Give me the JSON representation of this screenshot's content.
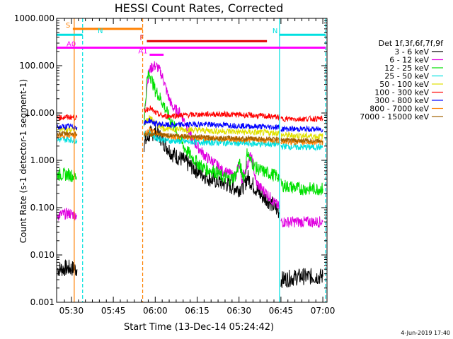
{
  "chart_data": {
    "type": "line",
    "title": "HESSI Count Rates, Corrected",
    "xlabel": "Start Time (13-Dec-14 05:24:42)",
    "ylabel": "Count Rate (s-1 detector-1 segment-1)",
    "yscale": "log",
    "xlim_minutes": [
      324.7,
      421.5
    ],
    "ylim": [
      0.001,
      1000
    ],
    "x_ticks": [
      {
        "label": "05:30",
        "value": 330
      },
      {
        "label": "05:45",
        "value": 345
      },
      {
        "label": "06:00",
        "value": 360
      },
      {
        "label": "06:15",
        "value": 375
      },
      {
        "label": "06:30",
        "value": 390
      },
      {
        "label": "06:45",
        "value": 405
      },
      {
        "label": "07:00",
        "value": 420
      }
    ],
    "y_ticks": [
      {
        "label": "1000.000",
        "value": 1000
      },
      {
        "label": "100.000",
        "value": 100
      },
      {
        "label": "10.000",
        "value": 10
      },
      {
        "label": "1.000",
        "value": 1
      },
      {
        "label": "0.100",
        "value": 0.1
      },
      {
        "label": "0.010",
        "value": 0.01
      },
      {
        "label": "0.001",
        "value": 0.001
      }
    ],
    "legend": {
      "title": "Det 1f,3f,6f,7f,9f",
      "placement": "right",
      "entries": [
        {
          "label": "3 - 6 keV",
          "color": "#000000"
        },
        {
          "label": "6 - 12 keV",
          "color": "#e000e0"
        },
        {
          "label": "12 - 25 keV",
          "color": "#00e000"
        },
        {
          "label": "25 - 50 keV",
          "color": "#00e0e0"
        },
        {
          "label": "50 - 100 keV",
          "color": "#e0e000"
        },
        {
          "label": "100 - 300 keV",
          "color": "#ff0000"
        },
        {
          "label": "300 - 800 keV",
          "color": "#0000ff"
        },
        {
          "label": "800 - 7000 keV",
          "color": "#ff8000"
        },
        {
          "label": "7000 - 15000 keV",
          "color": "#a06000"
        }
      ]
    },
    "series": [
      {
        "name": "3 - 6 keV",
        "color": "#000000",
        "noise": 0.18,
        "segments": [
          [
            [
              325,
              0.005
            ],
            [
              329,
              0.0053
            ],
            [
              332,
              0.005
            ]
          ],
          [
            [
              356,
              2.2
            ],
            [
              358,
              3.5
            ],
            [
              360,
              4.0
            ],
            [
              362,
              3.0
            ],
            [
              364,
              2.0
            ],
            [
              366,
              1.4
            ],
            [
              370,
              1.0
            ],
            [
              375,
              0.6
            ],
            [
              380,
              0.4
            ],
            [
              385,
              0.32
            ],
            [
              388,
              0.27
            ],
            [
              390,
              0.25
            ],
            [
              392,
              0.3
            ],
            [
              393,
              0.45
            ],
            [
              395,
              0.3
            ],
            [
              398,
              0.18
            ],
            [
              400,
              0.15
            ],
            [
              403,
              0.1
            ],
            [
              404.5,
              0.08
            ]
          ],
          [
            [
              405,
              0.003
            ],
            [
              412,
              0.0035
            ],
            [
              420,
              0.0035
            ]
          ]
        ]
      },
      {
        "name": "6 - 12 keV",
        "color": "#e000e0",
        "noise": 0.12,
        "segments": [
          [
            [
              325,
              0.07
            ],
            [
              329,
              0.075
            ],
            [
              332,
              0.07
            ]
          ],
          [
            [
              356,
              6
            ],
            [
              357,
              40
            ],
            [
              358,
              80
            ],
            [
              359,
              95
            ],
            [
              360,
              100
            ],
            [
              361,
              90
            ],
            [
              362,
              70
            ],
            [
              363,
              50
            ],
            [
              364,
              30
            ],
            [
              365,
              20
            ],
            [
              366,
              14
            ],
            [
              367,
              12
            ],
            [
              369,
              10
            ],
            [
              371,
              6
            ],
            [
              373,
              3
            ],
            [
              375,
              2
            ],
            [
              378,
              1.2
            ],
            [
              381,
              0.9
            ],
            [
              384,
              0.6
            ],
            [
              387,
              0.5
            ],
            [
              389,
              0.45
            ],
            [
              390,
              0.9
            ],
            [
              391,
              0.4
            ],
            [
              393,
              0.8
            ],
            [
              394,
              1.2
            ],
            [
              395,
              0.9
            ],
            [
              396,
              0.35
            ],
            [
              398,
              0.25
            ],
            [
              400,
              0.2
            ],
            [
              402,
              0.14
            ],
            [
              404.5,
              0.1
            ]
          ],
          [
            [
              405,
              0.05
            ],
            [
              412,
              0.05
            ],
            [
              420,
              0.05
            ]
          ]
        ]
      },
      {
        "name": "12 - 25 keV",
        "color": "#00e000",
        "noise": 0.14,
        "segments": [
          [
            [
              325,
              0.5
            ],
            [
              329,
              0.5
            ],
            [
              332,
              0.45
            ]
          ],
          [
            [
              356,
              6
            ],
            [
              357,
              50
            ],
            [
              358,
              70
            ],
            [
              359,
              45
            ],
            [
              360,
              30
            ],
            [
              361,
              25
            ],
            [
              363,
              15
            ],
            [
              365,
              8
            ],
            [
              367,
              5
            ],
            [
              370,
              2
            ],
            [
              373,
              1.2
            ],
            [
              375,
              0.9
            ],
            [
              378,
              0.65
            ],
            [
              381,
              0.6
            ],
            [
              384,
              0.45
            ],
            [
              387,
              0.4
            ],
            [
              389,
              0.5
            ],
            [
              390,
              0.9
            ],
            [
              391,
              0.55
            ],
            [
              392,
              0.45
            ],
            [
              393,
              1.6
            ],
            [
              394,
              1.0
            ],
            [
              396,
              0.7
            ],
            [
              398,
              0.6
            ],
            [
              400,
              0.55
            ],
            [
              402,
              0.5
            ],
            [
              404.5,
              0.45
            ]
          ],
          [
            [
              405,
              0.3
            ],
            [
              412,
              0.25
            ],
            [
              420,
              0.25
            ]
          ]
        ]
      },
      {
        "name": "25 - 50 keV",
        "color": "#00e0e0",
        "noise": 0.07,
        "segments": [
          [
            [
              325,
              2.7
            ],
            [
              329,
              2.8
            ],
            [
              332,
              2.6
            ]
          ],
          [
            [
              356,
              3.5
            ],
            [
              358,
              4
            ],
            [
              360,
              3
            ],
            [
              365,
              2.6
            ],
            [
              370,
              2.5
            ],
            [
              380,
              2.4
            ],
            [
              390,
              2.3
            ],
            [
              400,
              2.2
            ],
            [
              404.5,
              2.2
            ]
          ],
          [
            [
              405,
              2.0
            ],
            [
              412,
              1.9
            ],
            [
              420,
              1.9
            ]
          ]
        ]
      },
      {
        "name": "50 - 100 keV",
        "color": "#e0e000",
        "noise": 0.07,
        "segments": [
          [
            [
              325,
              4.5
            ],
            [
              329,
              4.6
            ],
            [
              332,
              4.4
            ]
          ],
          [
            [
              356,
              6
            ],
            [
              358,
              8
            ],
            [
              360,
              6
            ],
            [
              363,
              4.8
            ],
            [
              370,
              4.5
            ],
            [
              380,
              4.2
            ],
            [
              390,
              4.0
            ],
            [
              400,
              3.8
            ],
            [
              404.5,
              3.8
            ]
          ],
          [
            [
              405,
              3.4
            ],
            [
              412,
              3.3
            ],
            [
              420,
              3.2
            ]
          ]
        ]
      },
      {
        "name": "100 - 300 keV",
        "color": "#ff0000",
        "noise": 0.06,
        "segments": [
          [
            [
              325,
              8
            ],
            [
              329,
              8.2
            ],
            [
              332,
              8
            ]
          ],
          [
            [
              356,
              11
            ],
            [
              358,
              13
            ],
            [
              360,
              10
            ],
            [
              363,
              8.5
            ],
            [
              370,
              9
            ],
            [
              380,
              9.5
            ],
            [
              390,
              9.2
            ],
            [
              400,
              8.5
            ],
            [
              404.5,
              8.2
            ]
          ],
          [
            [
              405,
              7.5
            ],
            [
              412,
              7.5
            ],
            [
              420,
              7.6
            ]
          ]
        ]
      },
      {
        "name": "300 - 800 keV",
        "color": "#0000ff",
        "noise": 0.06,
        "segments": [
          [
            [
              325,
              5
            ],
            [
              329,
              5.2
            ],
            [
              332,
              5
            ]
          ],
          [
            [
              356,
              6
            ],
            [
              358,
              7
            ],
            [
              360,
              6
            ],
            [
              365,
              5.5
            ],
            [
              375,
              5.8
            ],
            [
              385,
              5.6
            ],
            [
              395,
              5.2
            ],
            [
              404.5,
              5.0
            ]
          ],
          [
            [
              405,
              4.6
            ],
            [
              412,
              4.6
            ],
            [
              420,
              4.5
            ]
          ]
        ]
      },
      {
        "name": "800 - 7000 keV",
        "color": "#ff8000",
        "noise": 0.06,
        "segments": [
          [
            [
              325,
              3.3
            ],
            [
              329,
              3.4
            ],
            [
              332,
              3.3
            ]
          ],
          [
            [
              356,
              3.5
            ],
            [
              358,
              4.5
            ],
            [
              360,
              3.8
            ],
            [
              365,
              3.2
            ],
            [
              375,
              3.0
            ],
            [
              385,
              2.8
            ],
            [
              395,
              2.7
            ],
            [
              404.5,
              2.6
            ]
          ],
          [
            [
              405,
              2.5
            ],
            [
              412,
              2.4
            ],
            [
              420,
              2.4
            ]
          ]
        ]
      },
      {
        "name": "7000 - 15000 keV",
        "color": "#a06000",
        "noise": 0.05,
        "segments": [
          [
            [
              325,
              3.6
            ],
            [
              329,
              3.7
            ],
            [
              332,
              3.6
            ]
          ],
          [
            [
              356,
              3.5
            ],
            [
              360,
              3.5
            ],
            [
              370,
              3.3
            ],
            [
              380,
              3.0
            ],
            [
              390,
              2.9
            ],
            [
              404.5,
              2.8
            ]
          ],
          [
            [
              405,
              2.7
            ],
            [
              412,
              2.6
            ],
            [
              420,
              2.6
            ]
          ]
        ]
      }
    ],
    "flag_bars": [
      {
        "label": "S",
        "color": "#ff8000",
        "x": [
          330.5,
          355.5
        ],
        "y": 600
      },
      {
        "label": "N",
        "color": "#00e0e0",
        "x": [
          324.7,
          334
        ],
        "y": 450
      },
      {
        "label": "N",
        "color": "#00e0e0",
        "x": [
          404.5,
          421
        ],
        "y": 450
      },
      {
        "label": "F",
        "color": "#e00000",
        "x": [
          357,
          400
        ],
        "y": 330
      },
      {
        "label": "A0",
        "color": "#ff00ff",
        "x": [
          324.7,
          421
        ],
        "y": 240
      },
      {
        "label": "A1",
        "color": "#ff00ff",
        "x": [
          358,
          363
        ],
        "y": 170
      }
    ],
    "vertical_lines": [
      {
        "x": 331,
        "color": "#ff8000",
        "style": "solid"
      },
      {
        "x": 334,
        "color": "#00e0e0",
        "style": "dashed"
      },
      {
        "x": 355.5,
        "color": "#ff8000",
        "style": "dashed"
      },
      {
        "x": 404.5,
        "color": "#00e0e0",
        "style": "solid"
      },
      {
        "x": 421,
        "color": "#00e0e0",
        "style": "dashed"
      }
    ],
    "timestamp": "4-Jun-2019 17:40"
  }
}
